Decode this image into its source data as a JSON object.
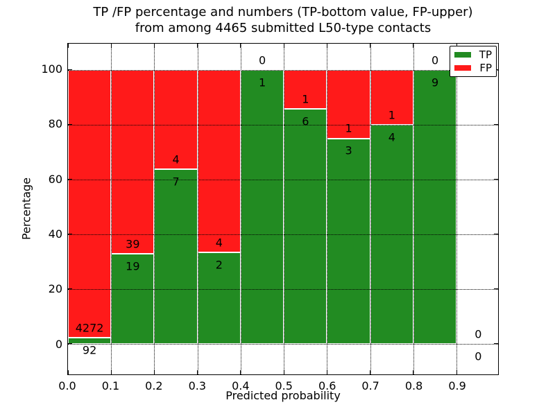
{
  "chart_data": {
    "type": "bar",
    "stacked": true,
    "title_lines": [
      "TP /FP percentage and numbers (TP-bottom value, FP-upper)",
      "from among 4465 submitted L50-type contacts"
    ],
    "xlabel": "Predicted probability",
    "ylabel": "Percentage",
    "series": [
      {
        "name": "TP",
        "color": "#228b22"
      },
      {
        "name": "FP",
        "color": "#ff1a1a"
      }
    ],
    "bins": [
      {
        "x_start": 0.0,
        "x_end": 0.1,
        "tp": 92,
        "fp": 4272
      },
      {
        "x_start": 0.1,
        "x_end": 0.2,
        "tp": 19,
        "fp": 39
      },
      {
        "x_start": 0.2,
        "x_end": 0.3,
        "tp": 7,
        "fp": 4
      },
      {
        "x_start": 0.3,
        "x_end": 0.4,
        "tp": 2,
        "fp": 4
      },
      {
        "x_start": 0.4,
        "x_end": 0.5,
        "tp": 1,
        "fp": 0
      },
      {
        "x_start": 0.5,
        "x_end": 0.6,
        "tp": 6,
        "fp": 1
      },
      {
        "x_start": 0.6,
        "x_end": 0.7,
        "tp": 3,
        "fp": 1
      },
      {
        "x_start": 0.7,
        "x_end": 0.8,
        "tp": 4,
        "fp": 1
      },
      {
        "x_start": 0.8,
        "x_end": 0.9,
        "tp": 9,
        "fp": 0
      },
      {
        "x_start": 0.9,
        "x_end": 1.0,
        "tp": 0,
        "fp": 0
      }
    ],
    "x_ticks": [
      "0.0",
      "0.1",
      "0.2",
      "0.3",
      "0.4",
      "0.5",
      "0.6",
      "0.7",
      "0.8",
      "0.9"
    ],
    "y_ticks": [
      "0",
      "20",
      "40",
      "60",
      "80",
      "100"
    ],
    "xlim": [
      0,
      0.996
    ],
    "ylim": [
      -11.2,
      109.6
    ],
    "grid": true,
    "legend_position": "upper right"
  }
}
